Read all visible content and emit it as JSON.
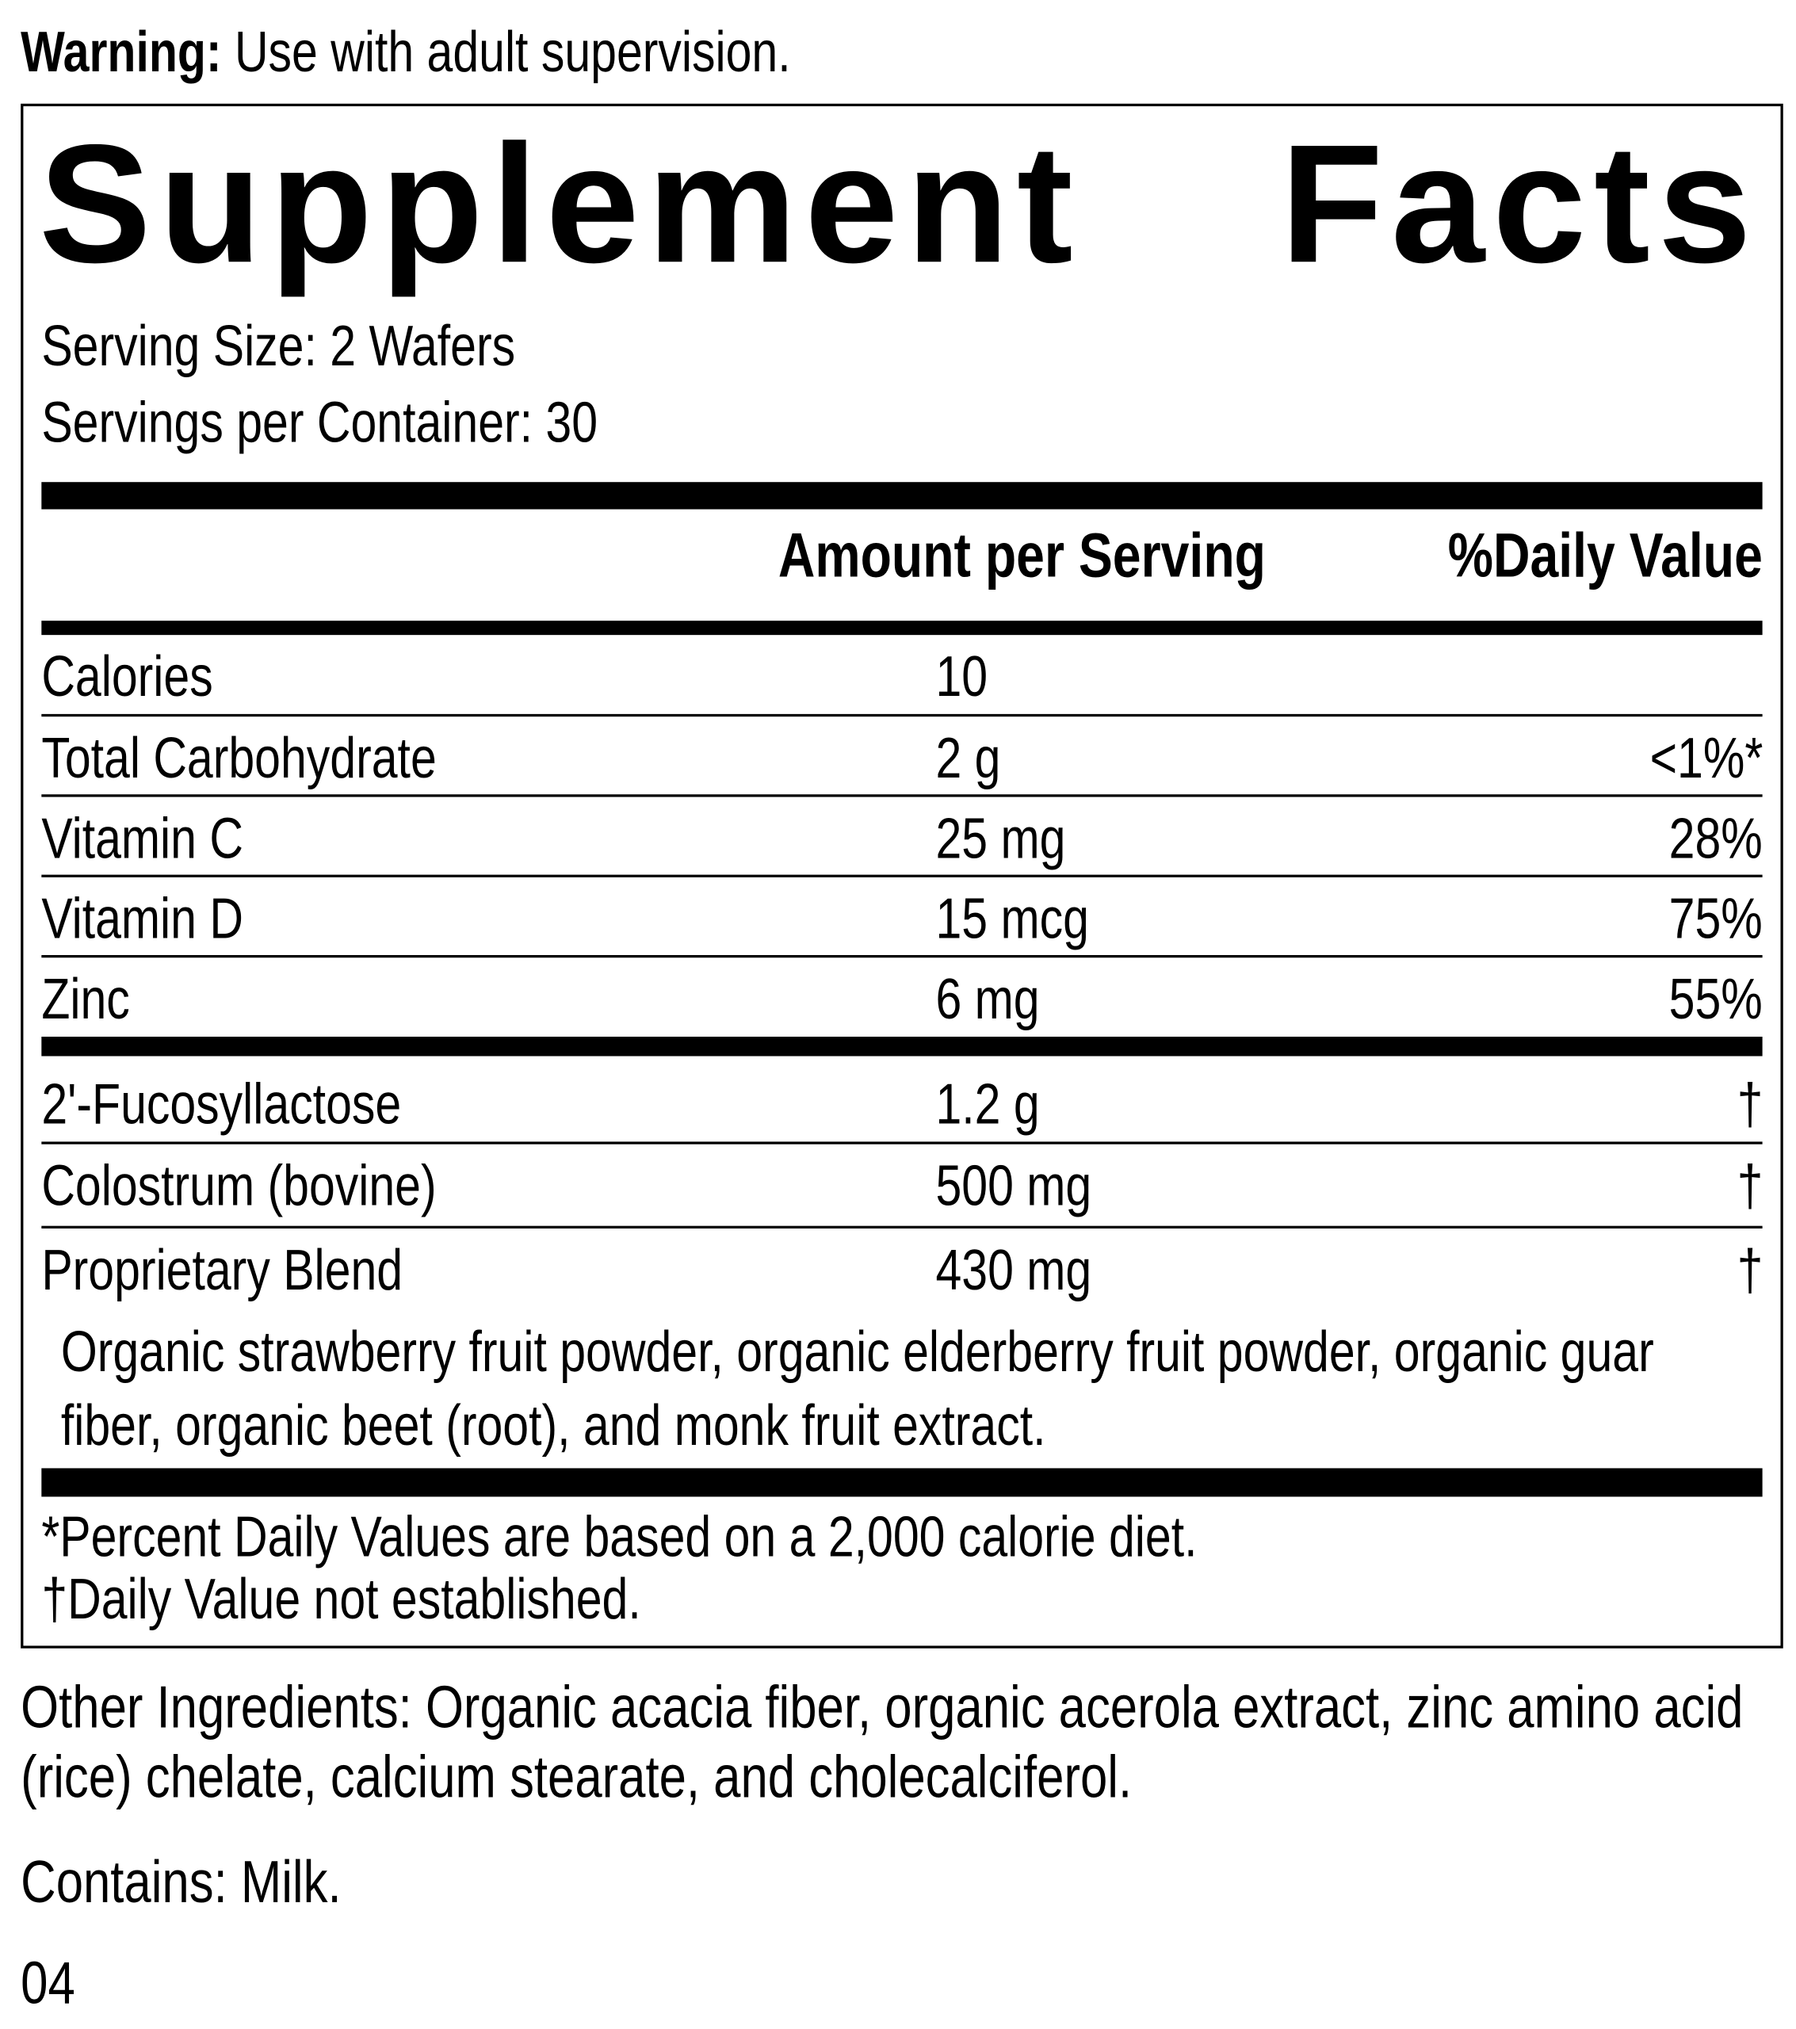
{
  "warning": {
    "label": "Warning:",
    "text": " Use with adult supervision."
  },
  "title": {
    "word1": "Supplement",
    "word2": "Facts"
  },
  "serving_size": "Serving Size: 2 Wafers",
  "servings_per_container": "Servings per Container: 30",
  "header": {
    "amount": "Amount per Serving",
    "daily_value": "%Daily Value"
  },
  "rows": [
    {
      "name": "Calories",
      "amount": "10",
      "dv": ""
    },
    {
      "name": "Total Carbohydrate",
      "amount": "2 g",
      "dv": "<1%*"
    },
    {
      "name": "Vitamin C",
      "amount": "25 mg",
      "dv": "28%"
    },
    {
      "name": "Vitamin D",
      "amount": "15 mcg",
      "dv": "75%"
    },
    {
      "name": "Zinc",
      "amount": "6 mg",
      "dv": "55%"
    },
    {
      "name": "2'-Fucosyllactose",
      "amount": "1.2 g",
      "dv": "†"
    },
    {
      "name": "Colostrum (bovine)",
      "amount": "500 mg",
      "dv": "†"
    },
    {
      "name": "Proprietary Blend",
      "amount": "430 mg",
      "dv": "†"
    }
  ],
  "blend_ingredients": "Organic strawberry fruit powder, organic elderberry fruit powder, organic guar fiber, organic beet (root), and monk fruit extract.",
  "footnotes": [
    "*Percent Daily Values are based on a 2,000 calorie diet.",
    "†Daily Value not established."
  ],
  "other_ingredients": "Other Ingredients: Organic acacia fiber, organic acerola extract, zinc amino acid (rice) chelate, calcium stearate, and cholecalciferol.",
  "contains": "Contains: Milk.",
  "code": "04"
}
